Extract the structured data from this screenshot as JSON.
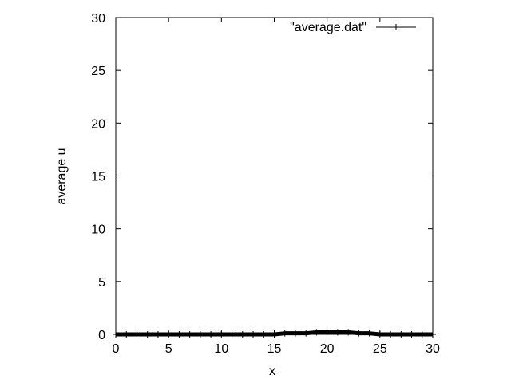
{
  "chart_data": {
    "type": "line",
    "xlabel": "x",
    "ylabel": "average u",
    "xlim": [
      0,
      30
    ],
    "ylim": [
      0,
      30
    ],
    "xticks": [
      0,
      5,
      10,
      15,
      20,
      25,
      30
    ],
    "yticks": [
      0,
      5,
      10,
      15,
      20,
      25,
      30
    ],
    "grid": false,
    "legend_position": "top-right",
    "series": [
      {
        "name": "\"average.dat\"",
        "color": "#000000",
        "x": [
          0,
          1,
          2,
          3,
          4,
          5,
          6,
          7,
          8,
          9,
          10,
          11,
          12,
          13,
          14,
          15,
          16,
          17,
          18,
          19,
          20,
          21,
          22,
          23,
          24,
          25,
          26,
          27,
          28,
          29,
          30
        ],
        "y": [
          0,
          0,
          0,
          0,
          0,
          0,
          0,
          0,
          0,
          0,
          0,
          0,
          0,
          0,
          0,
          0,
          0.1,
          0.1,
          0.1,
          0.2,
          0.2,
          0.2,
          0.2,
          0.1,
          0.1,
          0,
          0,
          0,
          0,
          0,
          0
        ]
      }
    ]
  }
}
